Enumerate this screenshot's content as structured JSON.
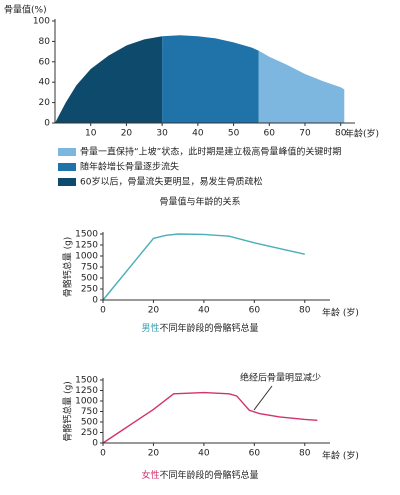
{
  "chart_data": [
    {
      "type": "area",
      "y_label": "骨量值(%)",
      "x_label": "年龄(岁)",
      "title": "骨量值与年龄的关系",
      "xlim": [
        0,
        84
      ],
      "ylim": [
        0,
        100
      ],
      "xticks": [
        10,
        20,
        30,
        40,
        50,
        60,
        70,
        80
      ],
      "yticks": [
        0,
        20,
        40,
        60,
        80,
        100
      ],
      "series": [
        {
          "name": "骨量一直保持“上坡”状态，此时期是建立极高骨量峰值的关键时期",
          "color": "#7db7e0",
          "x": [
            57,
            60,
            65,
            70,
            75,
            80,
            81
          ],
          "values": [
            71,
            65,
            57,
            48,
            41,
            35,
            33
          ]
        },
        {
          "name": "随年龄增长骨量逐步流失",
          "color": "#1f73a8",
          "x": [
            30,
            35,
            40,
            45,
            50,
            55,
            57
          ],
          "values": [
            85,
            86,
            85,
            83,
            79,
            74,
            71
          ]
        },
        {
          "name": "60岁以后，骨量流失更明显，易发生骨质疏松",
          "color": "#0d4a6b",
          "x": [
            0,
            3,
            6,
            10,
            15,
            20,
            25,
            30
          ],
          "values": [
            0,
            20,
            37,
            53,
            66,
            76,
            82,
            85
          ]
        }
      ]
    },
    {
      "type": "line",
      "y_label": "骨骼钙总量 (g)",
      "x_label": "年龄 (岁)",
      "caption_highlight": "男性",
      "caption": "不同年龄段的骨骼钙总量",
      "xlim": [
        0,
        90
      ],
      "ylim": [
        0,
        1500
      ],
      "xticks": [
        0,
        20,
        40,
        60,
        80
      ],
      "yticks": [
        0,
        250,
        500,
        750,
        1000,
        1250,
        1500
      ],
      "color": "#4aaeb9",
      "highlight_color": "#3a9fb0",
      "x": [
        0,
        10,
        20,
        25,
        30,
        40,
        50,
        60,
        70,
        80
      ],
      "values": [
        0,
        700,
        1400,
        1470,
        1500,
        1490,
        1450,
        1300,
        1170,
        1040
      ]
    },
    {
      "type": "line",
      "y_label": "骨骼钙总量 (g)",
      "x_label": "年龄 (岁)",
      "caption_highlight": "女性",
      "caption": "不同年龄段的骨骼钙总量",
      "annotation": "绝经后骨量明显减少",
      "xlim": [
        0,
        90
      ],
      "ylim": [
        0,
        1500
      ],
      "xticks": [
        0,
        20,
        40,
        60,
        80
      ],
      "yticks": [
        0,
        250,
        500,
        750,
        1000,
        1250,
        1500
      ],
      "color": "#d2336f",
      "highlight_color": "#d2336f",
      "x": [
        0,
        10,
        20,
        28,
        40,
        50,
        53,
        58,
        62,
        70,
        80,
        85
      ],
      "values": [
        0,
        400,
        800,
        1170,
        1200,
        1170,
        1120,
        780,
        700,
        620,
        560,
        540
      ]
    }
  ]
}
